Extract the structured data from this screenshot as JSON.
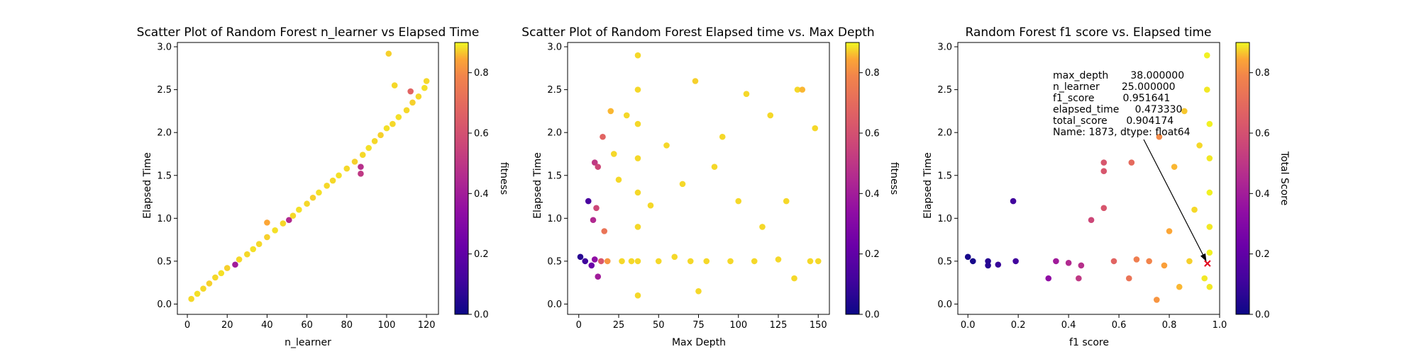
{
  "chart_data": [
    {
      "type": "scatter",
      "title": "Scatter Plot of Random Forest n_learner vs Elapsed Time",
      "xlabel": "n_learner",
      "ylabel": "Elapsed Time",
      "xlim": [
        -5,
        126
      ],
      "ylim": [
        -0.12,
        3.05
      ],
      "xticks": [
        "0",
        "20",
        "40",
        "60",
        "80",
        "100",
        "120"
      ],
      "yticks": [
        "0.0",
        "0.5",
        "1.0",
        "1.5",
        "2.0",
        "2.5",
        "3.0"
      ],
      "colorbar": {
        "label": "fitness",
        "range": [
          0.0,
          0.9
        ],
        "ticks": [
          "0.0",
          "0.2",
          "0.4",
          "0.6",
          "0.8"
        ],
        "colormap": "plasma"
      },
      "series": [
        {
          "x": 2,
          "y": 0.06,
          "c": 0.86
        },
        {
          "x": 5,
          "y": 0.12,
          "c": 0.87
        },
        {
          "x": 8,
          "y": 0.18,
          "c": 0.86
        },
        {
          "x": 11,
          "y": 0.24,
          "c": 0.85
        },
        {
          "x": 14,
          "y": 0.31,
          "c": 0.86
        },
        {
          "x": 17,
          "y": 0.36,
          "c": 0.87
        },
        {
          "x": 20,
          "y": 0.42,
          "c": 0.85
        },
        {
          "x": 24,
          "y": 0.46,
          "c": 0.35
        },
        {
          "x": 26,
          "y": 0.52,
          "c": 0.86
        },
        {
          "x": 30,
          "y": 0.58,
          "c": 0.86
        },
        {
          "x": 33,
          "y": 0.64,
          "c": 0.87
        },
        {
          "x": 36,
          "y": 0.7,
          "c": 0.86
        },
        {
          "x": 40,
          "y": 0.78,
          "c": 0.85
        },
        {
          "x": 40,
          "y": 0.95,
          "c": 0.8
        },
        {
          "x": 44,
          "y": 0.86,
          "c": 0.87
        },
        {
          "x": 48,
          "y": 0.94,
          "c": 0.86
        },
        {
          "x": 51,
          "y": 0.98,
          "c": 0.4
        },
        {
          "x": 53,
          "y": 1.03,
          "c": 0.86
        },
        {
          "x": 56,
          "y": 1.1,
          "c": 0.87
        },
        {
          "x": 60,
          "y": 1.17,
          "c": 0.86
        },
        {
          "x": 63,
          "y": 1.24,
          "c": 0.85
        },
        {
          "x": 66,
          "y": 1.3,
          "c": 0.87
        },
        {
          "x": 70,
          "y": 1.38,
          "c": 0.86
        },
        {
          "x": 73,
          "y": 1.44,
          "c": 0.86
        },
        {
          "x": 76,
          "y": 1.5,
          "c": 0.87
        },
        {
          "x": 80,
          "y": 1.58,
          "c": 0.86
        },
        {
          "x": 84,
          "y": 1.66,
          "c": 0.85
        },
        {
          "x": 87,
          "y": 1.52,
          "c": 0.45
        },
        {
          "x": 87,
          "y": 1.6,
          "c": 0.42
        },
        {
          "x": 88,
          "y": 1.74,
          "c": 0.86
        },
        {
          "x": 91,
          "y": 1.82,
          "c": 0.87
        },
        {
          "x": 94,
          "y": 1.9,
          "c": 0.86
        },
        {
          "x": 97,
          "y": 1.97,
          "c": 0.85
        },
        {
          "x": 100,
          "y": 2.05,
          "c": 0.87
        },
        {
          "x": 101,
          "y": 2.92,
          "c": 0.85
        },
        {
          "x": 103,
          "y": 2.1,
          "c": 0.86
        },
        {
          "x": 106,
          "y": 2.18,
          "c": 0.87
        },
        {
          "x": 110,
          "y": 2.26,
          "c": 0.86
        },
        {
          "x": 113,
          "y": 2.35,
          "c": 0.85
        },
        {
          "x": 116,
          "y": 2.42,
          "c": 0.86
        },
        {
          "x": 119,
          "y": 2.52,
          "c": 0.87
        },
        {
          "x": 120,
          "y": 2.6,
          "c": 0.86
        },
        {
          "x": 112,
          "y": 2.48,
          "c": 0.6
        },
        {
          "x": 104,
          "y": 2.55,
          "c": 0.86
        }
      ]
    },
    {
      "type": "scatter",
      "title": "Scatter Plot of Random Forest Elapsed time vs. Max Depth",
      "xlabel": "Max Depth",
      "ylabel": "Elapsed Time",
      "xlim": [
        -7,
        157
      ],
      "ylim": [
        -0.12,
        3.05
      ],
      "xticks": [
        "0",
        "25",
        "50",
        "75",
        "100",
        "125",
        "150"
      ],
      "yticks": [
        "0.0",
        "0.5",
        "1.0",
        "1.5",
        "2.0",
        "2.5",
        "3.0"
      ],
      "colorbar": {
        "label": "fitness",
        "range": [
          0.0,
          0.9
        ],
        "ticks": [
          "0.0",
          "0.2",
          "0.4",
          "0.6",
          "0.8"
        ],
        "colormap": "plasma"
      },
      "series": [
        {
          "x": 1,
          "y": 0.55,
          "c": 0.05
        },
        {
          "x": 4,
          "y": 0.5,
          "c": 0.1
        },
        {
          "x": 6,
          "y": 1.2,
          "c": 0.12
        },
        {
          "x": 8,
          "y": 0.45,
          "c": 0.2
        },
        {
          "x": 10,
          "y": 0.52,
          "c": 0.3
        },
        {
          "x": 10,
          "y": 1.65,
          "c": 0.45
        },
        {
          "x": 12,
          "y": 1.6,
          "c": 0.5
        },
        {
          "x": 11,
          "y": 1.12,
          "c": 0.5
        },
        {
          "x": 9,
          "y": 0.98,
          "c": 0.4
        },
        {
          "x": 12,
          "y": 0.32,
          "c": 0.35
        },
        {
          "x": 14,
          "y": 0.5,
          "c": 0.55
        },
        {
          "x": 15,
          "y": 1.95,
          "c": 0.6
        },
        {
          "x": 16,
          "y": 0.85,
          "c": 0.65
        },
        {
          "x": 18,
          "y": 0.5,
          "c": 0.75
        },
        {
          "x": 20,
          "y": 2.25,
          "c": 0.82
        },
        {
          "x": 22,
          "y": 1.75,
          "c": 0.86
        },
        {
          "x": 25,
          "y": 1.45,
          "c": 0.86
        },
        {
          "x": 27,
          "y": 0.5,
          "c": 0.86
        },
        {
          "x": 30,
          "y": 2.2,
          "c": 0.86
        },
        {
          "x": 33,
          "y": 0.5,
          "c": 0.86
        },
        {
          "x": 37,
          "y": 2.9,
          "c": 0.86
        },
        {
          "x": 37,
          "y": 2.5,
          "c": 0.86
        },
        {
          "x": 37,
          "y": 2.1,
          "c": 0.86
        },
        {
          "x": 37,
          "y": 1.7,
          "c": 0.86
        },
        {
          "x": 37,
          "y": 1.3,
          "c": 0.86
        },
        {
          "x": 37,
          "y": 0.9,
          "c": 0.86
        },
        {
          "x": 37,
          "y": 0.5,
          "c": 0.86
        },
        {
          "x": 37,
          "y": 0.1,
          "c": 0.86
        },
        {
          "x": 45,
          "y": 1.15,
          "c": 0.86
        },
        {
          "x": 50,
          "y": 0.5,
          "c": 0.86
        },
        {
          "x": 55,
          "y": 1.85,
          "c": 0.86
        },
        {
          "x": 60,
          "y": 0.55,
          "c": 0.86
        },
        {
          "x": 65,
          "y": 1.4,
          "c": 0.86
        },
        {
          "x": 70,
          "y": 0.5,
          "c": 0.86
        },
        {
          "x": 73,
          "y": 2.6,
          "c": 0.85
        },
        {
          "x": 75,
          "y": 0.15,
          "c": 0.86
        },
        {
          "x": 80,
          "y": 0.5,
          "c": 0.86
        },
        {
          "x": 85,
          "y": 1.6,
          "c": 0.86
        },
        {
          "x": 90,
          "y": 1.95,
          "c": 0.86
        },
        {
          "x": 95,
          "y": 0.5,
          "c": 0.86
        },
        {
          "x": 100,
          "y": 1.2,
          "c": 0.86
        },
        {
          "x": 105,
          "y": 2.45,
          "c": 0.86
        },
        {
          "x": 110,
          "y": 0.5,
          "c": 0.86
        },
        {
          "x": 115,
          "y": 0.9,
          "c": 0.86
        },
        {
          "x": 120,
          "y": 2.2,
          "c": 0.86
        },
        {
          "x": 125,
          "y": 0.52,
          "c": 0.86
        },
        {
          "x": 130,
          "y": 1.2,
          "c": 0.86
        },
        {
          "x": 135,
          "y": 0.3,
          "c": 0.86
        },
        {
          "x": 137,
          "y": 2.5,
          "c": 0.86
        },
        {
          "x": 140,
          "y": 2.5,
          "c": 0.82
        },
        {
          "x": 145,
          "y": 0.5,
          "c": 0.86
        },
        {
          "x": 148,
          "y": 2.05,
          "c": 0.86
        },
        {
          "x": 150,
          "y": 0.5,
          "c": 0.86
        }
      ]
    },
    {
      "type": "scatter",
      "title": "Random Forest f1 score vs. Elapsed time",
      "xlabel": "f1 score",
      "ylabel": "Elapsed Time",
      "xlim": [
        -0.04,
        1.0
      ],
      "ylim": [
        -0.12,
        3.05
      ],
      "xticks": [
        "0.0",
        "0.2",
        "0.4",
        "0.6",
        "0.8",
        "1.0"
      ],
      "yticks": [
        "0.0",
        "0.5",
        "1.0",
        "1.5",
        "2.0",
        "2.5",
        "3.0"
      ],
      "colorbar": {
        "label": "Total Score",
        "range": [
          0.0,
          0.9
        ],
        "ticks": [
          "0.0",
          "0.2",
          "0.4",
          "0.6",
          "0.8"
        ],
        "colormap": "plasma"
      },
      "annotation": {
        "lines": [
          "max_depth       38.000000",
          "n_learner       25.000000",
          "f1_score         0.951641",
          "elapsed_time     0.473330",
          "total_score      0.904174",
          "Name: 1873, dtype: float64"
        ],
        "point": {
          "x": 0.951641,
          "y": 0.47333
        },
        "marker_color": "#e3001b"
      },
      "series": [
        {
          "x": 0.0,
          "y": 0.55,
          "c": 0.02
        },
        {
          "x": 0.02,
          "y": 0.5,
          "c": 0.02
        },
        {
          "x": 0.08,
          "y": 0.5,
          "c": 0.05
        },
        {
          "x": 0.08,
          "y": 0.45,
          "c": 0.05
        },
        {
          "x": 0.12,
          "y": 0.46,
          "c": 0.08
        },
        {
          "x": 0.18,
          "y": 1.2,
          "c": 0.1
        },
        {
          "x": 0.19,
          "y": 0.5,
          "c": 0.1
        },
        {
          "x": 0.32,
          "y": 0.3,
          "c": 0.3
        },
        {
          "x": 0.35,
          "y": 0.5,
          "c": 0.35
        },
        {
          "x": 0.4,
          "y": 0.48,
          "c": 0.4
        },
        {
          "x": 0.44,
          "y": 0.3,
          "c": 0.45
        },
        {
          "x": 0.45,
          "y": 0.45,
          "c": 0.42
        },
        {
          "x": 0.49,
          "y": 0.98,
          "c": 0.5
        },
        {
          "x": 0.54,
          "y": 1.65,
          "c": 0.55
        },
        {
          "x": 0.54,
          "y": 1.55,
          "c": 0.55
        },
        {
          "x": 0.54,
          "y": 1.12,
          "c": 0.55
        },
        {
          "x": 0.58,
          "y": 0.5,
          "c": 0.6
        },
        {
          "x": 0.64,
          "y": 0.3,
          "c": 0.65
        },
        {
          "x": 0.65,
          "y": 1.65,
          "c": 0.62
        },
        {
          "x": 0.67,
          "y": 0.52,
          "c": 0.68
        },
        {
          "x": 0.72,
          "y": 0.5,
          "c": 0.7
        },
        {
          "x": 0.75,
          "y": 0.05,
          "c": 0.75
        },
        {
          "x": 0.76,
          "y": 1.95,
          "c": 0.72
        },
        {
          "x": 0.78,
          "y": 0.45,
          "c": 0.78
        },
        {
          "x": 0.8,
          "y": 0.85,
          "c": 0.8
        },
        {
          "x": 0.82,
          "y": 1.6,
          "c": 0.82
        },
        {
          "x": 0.84,
          "y": 0.2,
          "c": 0.82
        },
        {
          "x": 0.86,
          "y": 2.25,
          "c": 0.84
        },
        {
          "x": 0.88,
          "y": 0.5,
          "c": 0.85
        },
        {
          "x": 0.9,
          "y": 1.1,
          "c": 0.86
        },
        {
          "x": 0.92,
          "y": 1.85,
          "c": 0.86
        },
        {
          "x": 0.94,
          "y": 0.3,
          "c": 0.88
        },
        {
          "x": 0.95,
          "y": 2.9,
          "c": 0.89
        },
        {
          "x": 0.95,
          "y": 2.5,
          "c": 0.88
        },
        {
          "x": 0.96,
          "y": 2.1,
          "c": 0.89
        },
        {
          "x": 0.96,
          "y": 1.7,
          "c": 0.88
        },
        {
          "x": 0.96,
          "y": 1.3,
          "c": 0.89
        },
        {
          "x": 0.96,
          "y": 0.9,
          "c": 0.88
        },
        {
          "x": 0.96,
          "y": 0.6,
          "c": 0.89
        },
        {
          "x": 0.96,
          "y": 0.2,
          "c": 0.88
        }
      ]
    }
  ]
}
